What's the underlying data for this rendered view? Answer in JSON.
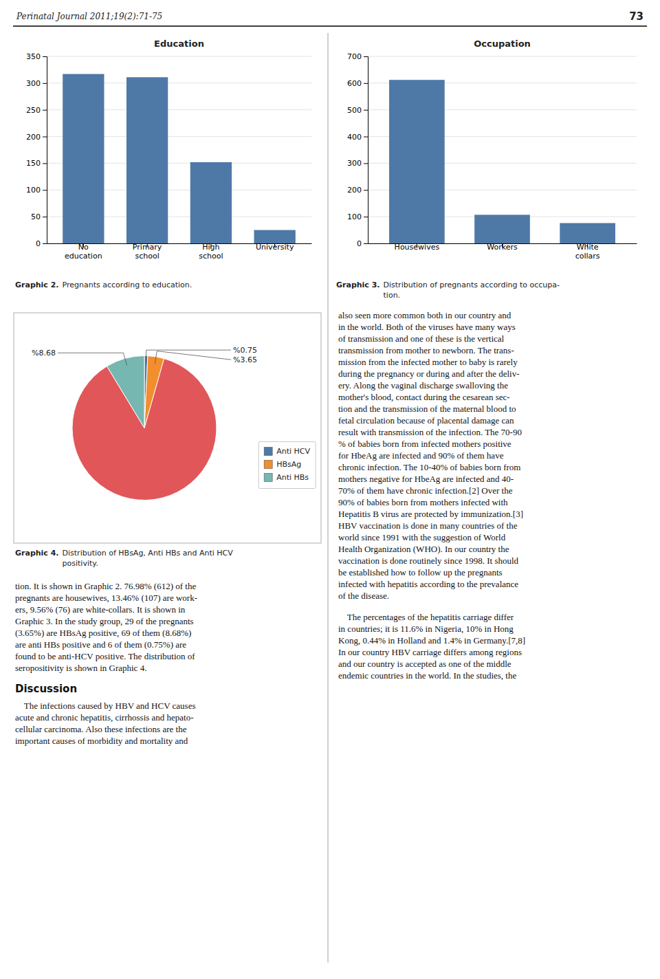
{
  "page_header": "Perinatal Journal 2011;19(2):71-75",
  "page_number": "73",
  "chart_data": [
    {
      "type": "bar",
      "title": "Education",
      "categories": [
        "No\neducation",
        "Primary\nschool",
        "High\nschool",
        "University"
      ],
      "values": [
        317,
        311,
        152,
        25
      ],
      "ylim": [
        0,
        350
      ],
      "yticks": [
        0,
        50,
        100,
        150,
        200,
        250,
        300,
        350
      ],
      "grid": true,
      "caption": {
        "label": "Graphic 2.",
        "lines": [
          "Pregnants according to education."
        ]
      }
    },
    {
      "type": "bar",
      "title": "Occupation",
      "categories": [
        "Housewives",
        "Workers",
        "White\ncollars"
      ],
      "values": [
        612,
        107,
        76
      ],
      "ylim": [
        0,
        700
      ],
      "yticks": [
        0,
        100,
        200,
        300,
        400,
        500,
        600,
        700
      ],
      "grid": true,
      "caption": {
        "label": "Graphic 3.",
        "lines": [
          "Distribution of pregnants according to occupa-",
          "tion."
        ]
      }
    },
    {
      "type": "pie",
      "categories": [
        "Anti HCV",
        "HBsAg",
        null,
        "Anti HBs"
      ],
      "values": [
        0.75,
        3.65,
        86.92,
        8.68
      ],
      "value_labels": [
        "%0.75",
        "%3.65",
        null,
        "%8.68"
      ],
      "data_labels": true,
      "legend": "right",
      "caption": {
        "label": "Graphic 4.",
        "lines": [
          "Distribution of HBsAg, Anti HBs and Anti HCV",
          "positivity."
        ]
      }
    }
  ],
  "body_text": [
    {
      "lines": [
        "tion. It is shown in Graphic 2. 76.98% (612) of the",
        "pregnants are housewives, 13.46% (107) are work-",
        "ers, 9.56% (76) are white-collars. It is shown in",
        "Graphic 3. In the study group, 29 of the pregnants",
        "(3.65%) are HBsAg positive, 69 of them (8.68%)",
        "are anti HBs positive and 6 of them (0.75%) are",
        "found to be anti-HCV positive. The distribution of",
        "seropositivity is shown in Graphic 4."
      ]
    },
    {
      "heading": "Discussion",
      "lines": [
        "    The infections caused by HBV and HCV causes",
        "acute and chronic hepatitis, cirrhossis and hepato-",
        "cellular carcinoma. Also these infections are the",
        "important causes of morbidity and mortality and"
      ]
    },
    {
      "lines": [
        "also seen more common both in our country and",
        "in the world. Both of the viruses have many ways",
        "of transmission and one of these is the vertical",
        "transmission from mother to newborn. The trans-",
        "mission from the infected mother to baby is rarely",
        "during the pregnancy or during and after the deliv-",
        "ery. Along the vaginal discharge swalloving the",
        "mother's blood, contact during the cesarean sec-",
        "tion and the transmission of the maternal blood to",
        "fetal circulation because of placental damage can",
        "result with transmission of the infection. The 70-90",
        "% of babies born from infected mothers positive",
        "for HbeAg are infected and 90% of them have",
        "chronic infection. The 10-40% of babies born from",
        "mothers negative for HbeAg are infected and 40-",
        "70% of them have chronic infection.[2] Over the",
        "90% of babies born from mothers infected with",
        "Hepatitis B virus are protected by immunization.[3]",
        "HBV vaccination is done in many countries of the",
        "world since 1991 with the suggestion of World",
        "Health Organization (WHO). In our country the",
        "vaccination is done routinely since 1998. It should",
        "be established how to follow up the pregnants",
        "infected with hepatitis according to the prevalance",
        "of the disease."
      ]
    },
    {
      "lines": [
        "    The percentages of the hepatitis carriage differ",
        "in countries; it is 11.6% in Nigeria, 10% in Hong",
        "Kong, 0.44% in Holland and 1.4% in Germany.[7,8]",
        "In our country HBV carriage differs among regions",
        "and our country is accepted as one of the middle",
        "endemic countries in the world. In the studies, the"
      ]
    }
  ]
}
